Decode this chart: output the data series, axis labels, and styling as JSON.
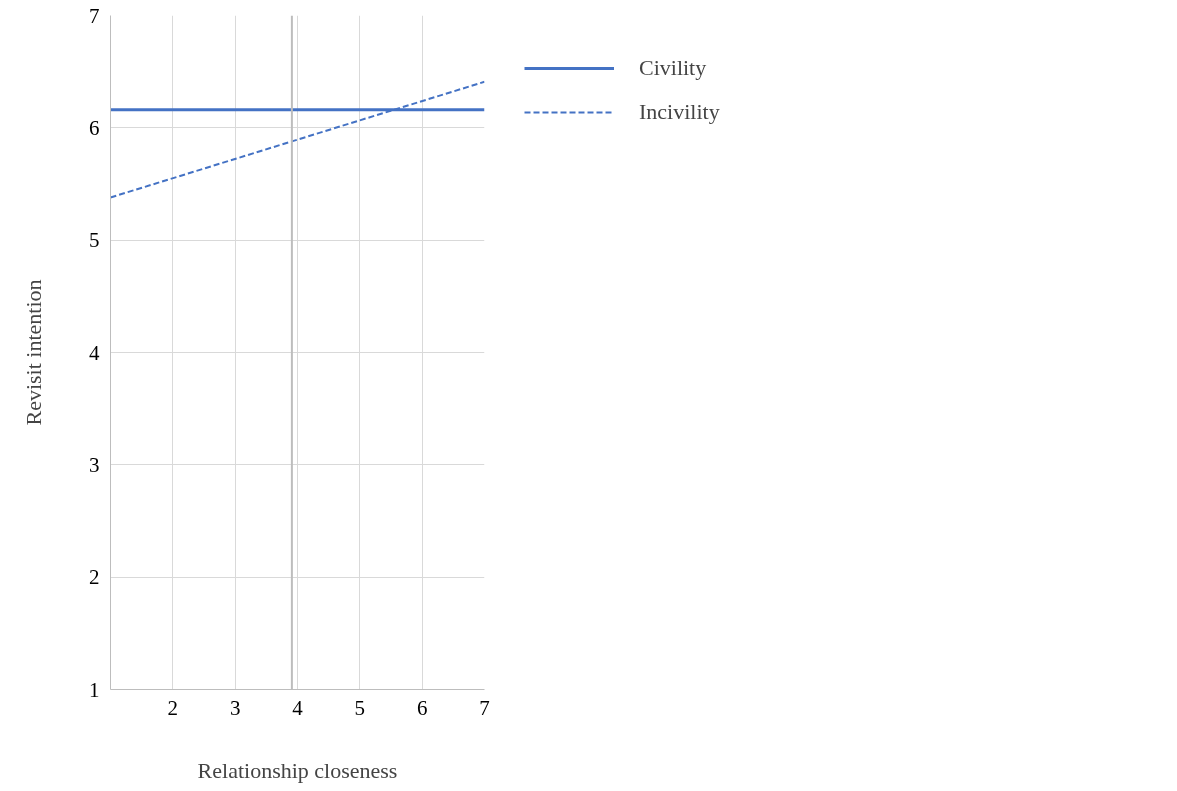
{
  "chart_data": {
    "type": "line",
    "xlabel": "Relationship closeness",
    "ylabel": "Revisit intention",
    "x": [
      1,
      7
    ],
    "series": [
      {
        "name": "Civility",
        "color": "#4472c4",
        "values": [
          6.16,
          6.16
        ],
        "line_style": "solid"
      },
      {
        "name": "Incivility",
        "color": "#4472c4",
        "values": [
          5.38,
          6.41
        ],
        "line_style": "dashed"
      }
    ],
    "xlim": [
      1,
      7
    ],
    "ylim": [
      1,
      7
    ],
    "xticks": [
      2,
      3,
      4,
      5,
      6,
      7
    ],
    "yticks": [
      1,
      2,
      3,
      4,
      5,
      6,
      7
    ],
    "ref_lines": [
      {
        "axis": "x",
        "value": 3.91,
        "color": "#bdbdbd"
      }
    ],
    "grid": true,
    "legend": "top right"
  }
}
